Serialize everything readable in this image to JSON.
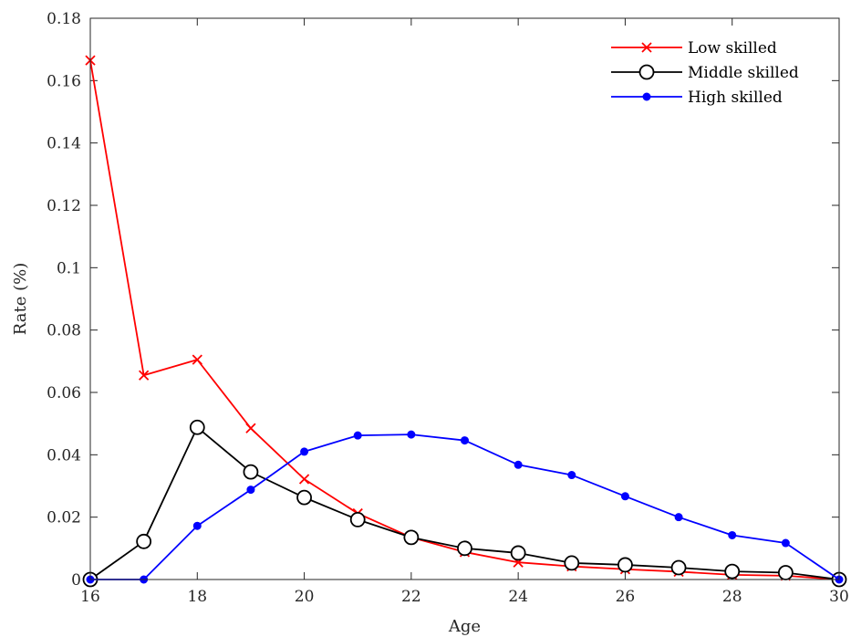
{
  "chart_data": {
    "type": "line",
    "title": "",
    "xlabel": "Age",
    "ylabel": "Rate (%)",
    "xlim": [
      16,
      30
    ],
    "ylim": [
      0,
      0.18
    ],
    "x": [
      16,
      17,
      18,
      19,
      20,
      21,
      22,
      23,
      24,
      25,
      26,
      27,
      28,
      29,
      30
    ],
    "xticks": [
      "16",
      "18",
      "20",
      "22",
      "24",
      "26",
      "28",
      "30"
    ],
    "xtick_values": [
      16,
      18,
      20,
      22,
      24,
      26,
      28,
      30
    ],
    "yticks": [
      "0",
      "0.02",
      "0.04",
      "0.06",
      "0.08",
      "0.1",
      "0.12",
      "0.14",
      "0.16",
      "0.18"
    ],
    "ytick_values": [
      0,
      0.02,
      0.04,
      0.06,
      0.08,
      0.1,
      0.12,
      0.14,
      0.16,
      0.18
    ],
    "grid": false,
    "legend_position": "top-right",
    "series": [
      {
        "name": "Low skilled",
        "color": "#ff0000",
        "marker": "x",
        "values": [
          0.1665,
          0.0655,
          0.0705,
          0.0485,
          0.0322,
          0.0212,
          0.0135,
          0.0088,
          0.0055,
          0.0042,
          0.0033,
          0.0025,
          0.0015,
          0.0012,
          0.0
        ]
      },
      {
        "name": "Middle skilled",
        "color": "#000000",
        "marker": "circle-open",
        "values": [
          0.0,
          0.0122,
          0.0488,
          0.0345,
          0.0263,
          0.0192,
          0.0135,
          0.01,
          0.0085,
          0.0053,
          0.0047,
          0.0038,
          0.0026,
          0.0022,
          0.0
        ]
      },
      {
        "name": "High skilled",
        "color": "#0000ff",
        "marker": "dot",
        "values": [
          0.0,
          0.0,
          0.0172,
          0.0288,
          0.041,
          0.0462,
          0.0465,
          0.0446,
          0.0368,
          0.0335,
          0.0267,
          0.02,
          0.0142,
          0.0117,
          0.0
        ]
      }
    ]
  }
}
